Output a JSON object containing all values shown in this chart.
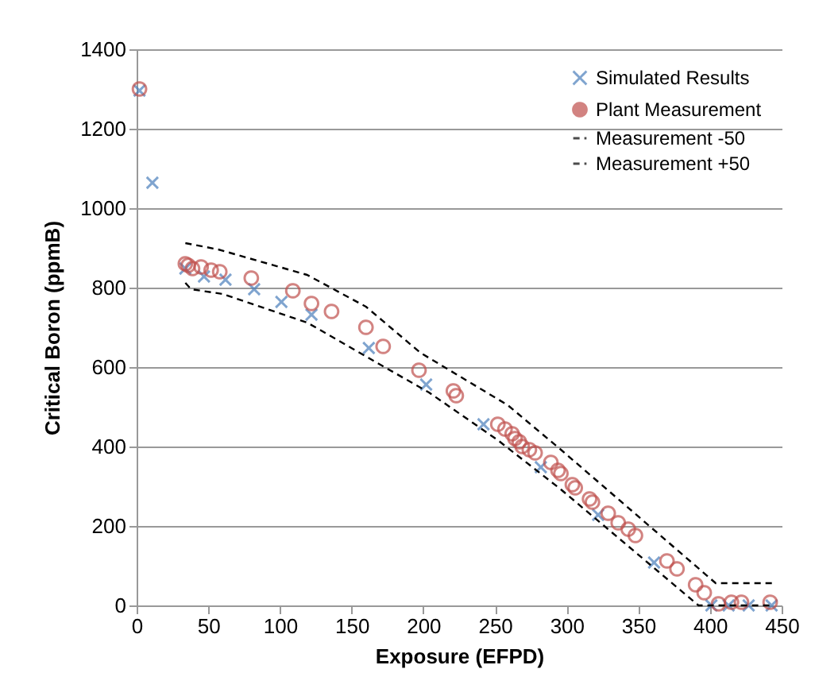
{
  "chart_data": {
    "type": "scatter",
    "xlabel": "Exposure (EFPD)",
    "ylabel": "Critical Boron (ppmB)",
    "xlim": [
      0,
      450
    ],
    "xticks": [
      0,
      50,
      100,
      150,
      200,
      250,
      300,
      350,
      400,
      450
    ],
    "ylim": [
      0,
      1400
    ],
    "yticks": [
      0,
      200,
      400,
      600,
      800,
      1000,
      1200,
      1400
    ],
    "grid": "y",
    "legend": "top right",
    "series": [
      {
        "name": "Simulated Results",
        "color": "#4a7ebb",
        "marker": "cross",
        "x": [
          2,
          11,
          34,
          47,
          62,
          82,
          101,
          122,
          162,
          202,
          242,
          282,
          322,
          361,
          401,
          413,
          427,
          443
        ],
        "values": [
          1296,
          1064,
          848,
          828,
          820,
          796,
          764,
          732,
          648,
          556,
          456,
          348,
          228,
          108,
          0,
          0,
          0,
          0
        ]
      },
      {
        "name": "Plant Measurement",
        "color": "#c0504d",
        "marker": "circle",
        "x": [
          2,
          34,
          36,
          39,
          45,
          52,
          58,
          80,
          109,
          122,
          136,
          160,
          172,
          197,
          221,
          223,
          252,
          257,
          262,
          264,
          267,
          269,
          274,
          278,
          289,
          294,
          296,
          304,
          306,
          316,
          318,
          329,
          336,
          343,
          348,
          370,
          377,
          390,
          396,
          406,
          415,
          422,
          442
        ],
        "values": [
          1300,
          860,
          856,
          848,
          852,
          844,
          840,
          824,
          792,
          760,
          740,
          700,
          652,
          592,
          540,
          528,
          456,
          444,
          432,
          420,
          412,
          400,
          392,
          384,
          360,
          340,
          332,
          304,
          296,
          268,
          260,
          232,
          208,
          192,
          176,
          112,
          92,
          52,
          32,
          4,
          8,
          8,
          8
        ]
      },
      {
        "name": "Measurement -50",
        "color": "#000000",
        "type": "line",
        "line_style": "dashed",
        "x": [
          34,
          38,
          60,
          119,
          171,
          204,
          252,
          296,
          392,
          444
        ],
        "values": [
          812,
          796,
          784,
          712,
          604,
          536,
          416,
          292,
          0,
          0
        ]
      },
      {
        "name": "Measurement +50",
        "color": "#000000",
        "type": "line",
        "line_style": "dashed",
        "x": [
          34,
          57,
          119,
          160,
          198,
          259,
          296,
          404,
          444
        ],
        "values": [
          912,
          896,
          832,
          752,
          636,
          504,
          392,
          56,
          56
        ]
      }
    ]
  }
}
